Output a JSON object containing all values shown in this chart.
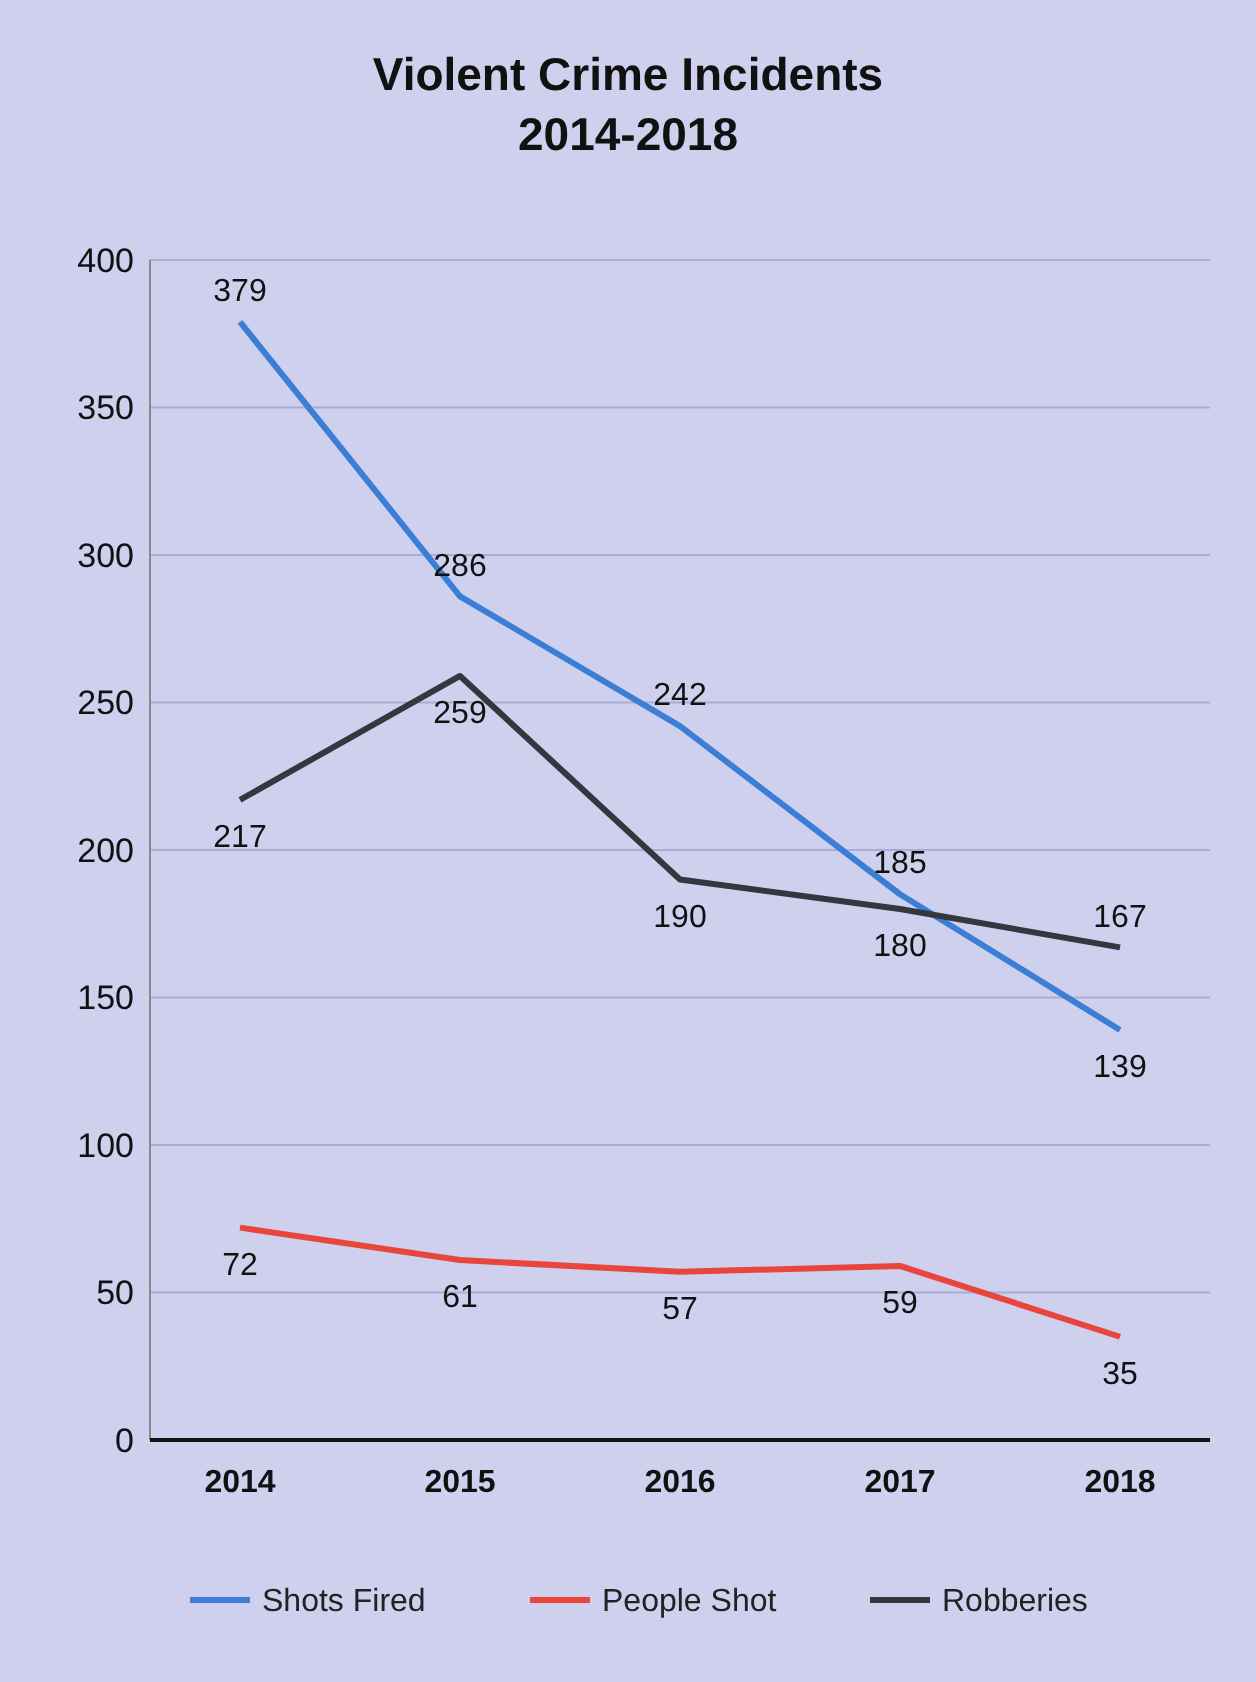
{
  "chart_data": {
    "type": "line",
    "title": "Violent Crime Incidents",
    "subtitle": "2014-2018",
    "categories": [
      "2014",
      "2015",
      "2016",
      "2017",
      "2018"
    ],
    "series": [
      {
        "name": "Shots Fired",
        "color": "#3a7fd5",
        "values": [
          379,
          286,
          242,
          185,
          139
        ]
      },
      {
        "name": "People Shot",
        "color": "#e8453c",
        "values": [
          72,
          61,
          57,
          59,
          35
        ]
      },
      {
        "name": "Robberies",
        "color": "#35363f",
        "values": [
          217,
          259,
          190,
          180,
          167
        ]
      }
    ],
    "ylim": [
      0,
      400
    ],
    "yticks": [
      0,
      50,
      100,
      150,
      200,
      250,
      300,
      350,
      400
    ],
    "grid": "y",
    "legend": "bottom",
    "data_labels": true,
    "marker": "none",
    "line_style": "solid"
  }
}
